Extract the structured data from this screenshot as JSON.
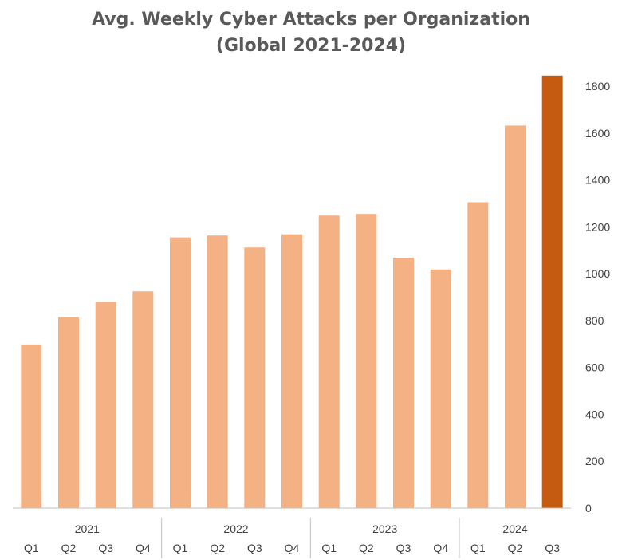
{
  "chart_data": {
    "type": "bar",
    "title": "Avg. Weekly Cyber Attacks per Organization",
    "subtitle": "(Global 2021-2024)",
    "xlabel": "",
    "ylabel": "",
    "grid": false,
    "legend": "none",
    "y_axis_position": "right",
    "ylim": [
      0,
      1800
    ],
    "yticks": [
      0,
      200,
      400,
      600,
      800,
      1000,
      1200,
      1400,
      1600,
      1800
    ],
    "groups": [
      {
        "year": "2021",
        "quarters": [
          "Q1",
          "Q2",
          "Q3",
          "Q4"
        ]
      },
      {
        "year": "2022",
        "quarters": [
          "Q1",
          "Q2",
          "Q3",
          "Q4"
        ]
      },
      {
        "year": "2023",
        "quarters": [
          "Q1",
          "Q2",
          "Q3",
          "Q4"
        ]
      },
      {
        "year": "2024",
        "quarters": [
          "Q1",
          "Q2",
          "Q3"
        ]
      }
    ],
    "categories": [
      "2021 Q1",
      "2021 Q2",
      "2021 Q3",
      "2021 Q4",
      "2022 Q1",
      "2022 Q2",
      "2022 Q3",
      "2022 Q4",
      "2023 Q1",
      "2023 Q2",
      "2023 Q3",
      "2023 Q4",
      "2024 Q1",
      "2024 Q2",
      "2024 Q3"
    ],
    "values": [
      698,
      815,
      880,
      925,
      1155,
      1163,
      1112,
      1168,
      1248,
      1255,
      1068,
      1018,
      1305,
      1632,
      1845
    ],
    "colors": {
      "default_bar": "#F4B183",
      "highlight_bar": "#C55A11",
      "axis": "#BFBFBF",
      "text": "#404040",
      "title": "#595959"
    },
    "highlight_index": 14
  }
}
